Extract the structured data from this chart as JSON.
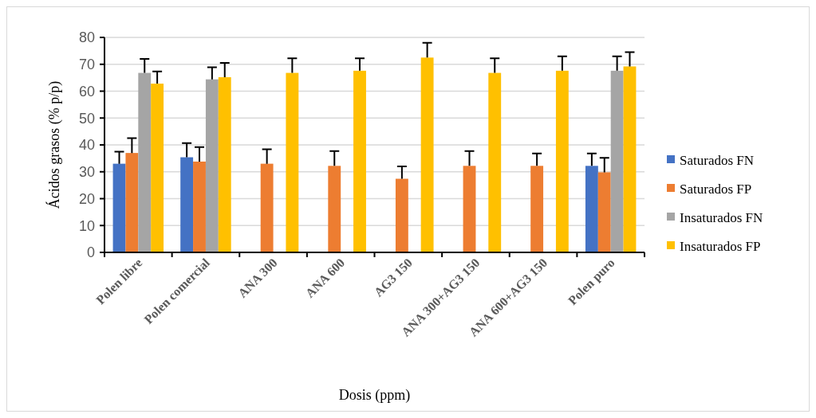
{
  "chart_data": {
    "type": "bar",
    "xlabel": "Dosis (ppm)",
    "ylabel": "Ácidos grasos (% p/p)",
    "categories": [
      "Polen libre",
      "Polen comercial",
      "ANA 300",
      "ANA 600",
      "AG3 150",
      "ANA 300+AG3 150",
      "ANA 600+AG3 150",
      "Polen puro"
    ],
    "series": [
      {
        "name": "Saturados FN",
        "color": "#4472c4",
        "values": [
          33,
          35.4,
          null,
          null,
          null,
          null,
          null,
          32.2
        ],
        "errors": [
          [
            33,
            37.5
          ],
          [
            35.4,
            40.7
          ],
          null,
          null,
          null,
          null,
          null,
          [
            32.2,
            36.8
          ]
        ]
      },
      {
        "name": "Saturados FP",
        "color": "#ed7d31",
        "values": [
          37,
          33.8,
          33,
          32.2,
          27.4,
          32.2,
          32.2,
          29.8
        ],
        "errors": [
          [
            37,
            42.5
          ],
          [
            33.8,
            39.2
          ],
          [
            33,
            38.4
          ],
          [
            32.2,
            37.7
          ],
          [
            27.4,
            32
          ],
          [
            32.2,
            37.7
          ],
          [
            32.2,
            36.8
          ],
          [
            29.8,
            35.2
          ]
        ]
      },
      {
        "name": "Insaturados FN",
        "color": "#a5a5a5",
        "values": [
          66.8,
          64.4,
          null,
          null,
          null,
          null,
          null,
          67.6
        ],
        "errors": [
          [
            66.8,
            72
          ],
          [
            64.4,
            68.9
          ],
          null,
          null,
          null,
          null,
          null,
          [
            67.6,
            73
          ]
        ]
      },
      {
        "name": "Insaturados FP",
        "color": "#ffc000",
        "values": [
          62.8,
          65.2,
          66.8,
          67.6,
          72.5,
          66.8,
          67.6,
          69.2
        ],
        "errors": [
          [
            62.8,
            67.3
          ],
          [
            65.2,
            70.5
          ],
          [
            66.8,
            72.2
          ],
          [
            67.6,
            72.2
          ],
          [
            72.5,
            78
          ],
          [
            66.8,
            72.2
          ],
          [
            67.6,
            73
          ],
          [
            69.2,
            74.5
          ]
        ]
      }
    ],
    "ylim": [
      0,
      80
    ],
    "yticks": [
      0,
      10,
      20,
      30,
      40,
      50,
      60,
      70,
      80
    ],
    "grid": "y",
    "legend": "right"
  }
}
